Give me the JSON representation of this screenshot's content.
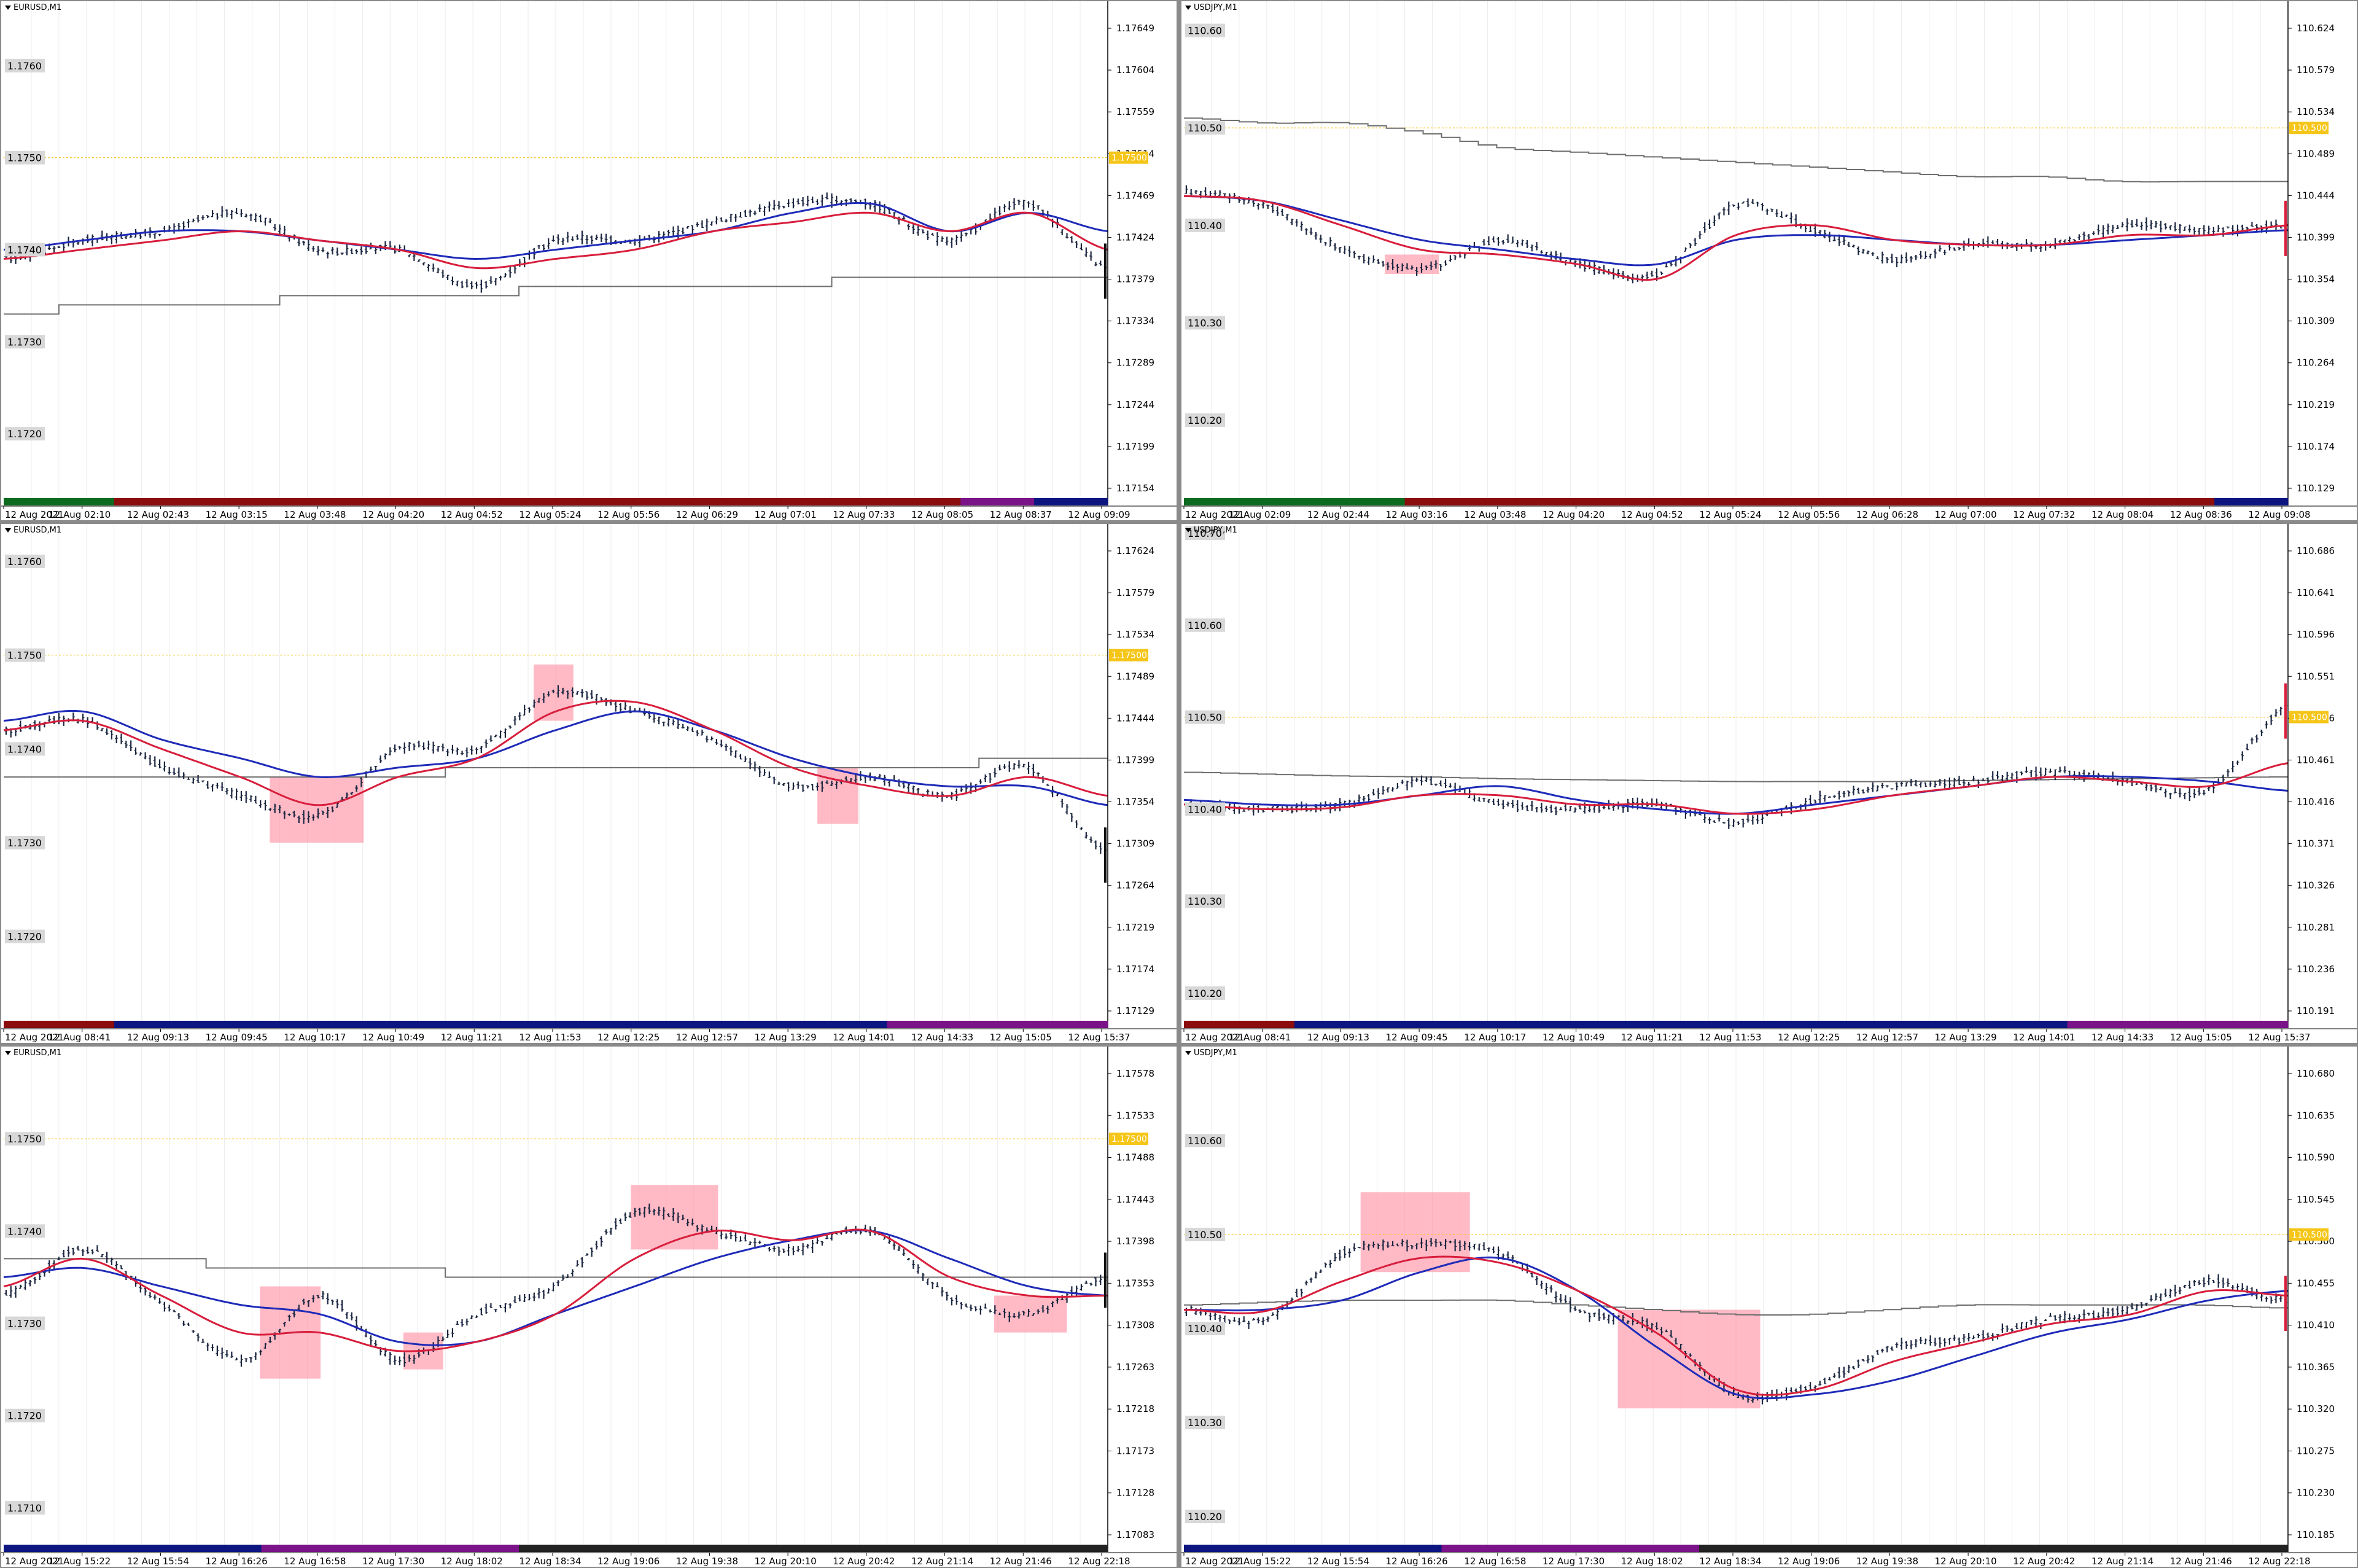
{
  "colors": {
    "candle": "#1c2740",
    "ma_fast": "#1f2bb8",
    "ma_slow": "#d81e3c",
    "slow_line": "#6e6e6e",
    "highlight": "#ff8fa3",
    "level_line": "#f5c518",
    "label_box": "#d8d8d8",
    "grid_v": "#ececec",
    "session_green": "#0b6b1e",
    "session_red": "#8b0d0d",
    "session_navy": "#0d1680",
    "session_purple": "#7a1288",
    "session_black": "#222222"
  },
  "panes": [
    {
      "title": "EURUSD,M1",
      "left_labels": [
        "1.1760",
        "1.1750",
        "1.1740",
        "1.1730",
        "1.1720"
      ],
      "right_labels": [
        "1.17649",
        "1.17604",
        "1.17559",
        "1.17514",
        "1.17469",
        "1.17424",
        "1.17379",
        "1.17334",
        "1.17289",
        "1.17244",
        "1.17199",
        "1.17154"
      ],
      "level_label": "1.17500",
      "time_labels": [
        "12 Aug 2021",
        "12 Aug 02:10",
        "12 Aug 02:43",
        "12 Aug 03:15",
        "12 Aug 03:48",
        "12 Aug 04:20",
        "12 Aug 04:52",
        "12 Aug 05:24",
        "12 Aug 05:56",
        "12 Aug 06:29",
        "12 Aug 07:01",
        "12 Aug 07:33",
        "12 Aug 08:05",
        "12 Aug 08:37",
        "12 Aug 09:09"
      ]
    },
    {
      "title": "USDJPY,M1",
      "left_labels": [
        "110.60",
        "110.50",
        "110.40",
        "110.30",
        "110.20"
      ],
      "right_labels": [
        "110.624",
        "110.579",
        "110.534",
        "110.489",
        "110.444",
        "110.399",
        "110.354",
        "110.309",
        "110.264",
        "110.219",
        "110.174",
        "110.129"
      ],
      "level_label": "110.500",
      "time_labels": [
        "12 Aug 2021",
        "12 Aug 02:09",
        "12 Aug 02:44",
        "12 Aug 03:16",
        "12 Aug 03:48",
        "12 Aug 04:20",
        "12 Aug 04:52",
        "12 Aug 05:24",
        "12 Aug 05:56",
        "12 Aug 06:28",
        "12 Aug 07:00",
        "12 Aug 07:32",
        "12 Aug 08:04",
        "12 Aug 08:36",
        "12 Aug 09:08"
      ]
    },
    {
      "title": "EURUSD,M1",
      "left_labels": [
        "1.1760",
        "1.1750",
        "1.1740",
        "1.1730",
        "1.1720"
      ],
      "right_labels": [
        "1.17624",
        "1.17579",
        "1.17534",
        "1.17489",
        "1.17444",
        "1.17399",
        "1.17354",
        "1.17309",
        "1.17264",
        "1.17219",
        "1.17174",
        "1.17129"
      ],
      "level_label": "1.17500",
      "time_labels": [
        "12 Aug 2021",
        "12 Aug 08:41",
        "12 Aug 09:13",
        "12 Aug 09:45",
        "12 Aug 10:17",
        "12 Aug 10:49",
        "12 Aug 11:21",
        "12 Aug 11:53",
        "12 Aug 12:25",
        "12 Aug 12:57",
        "12 Aug 13:29",
        "12 Aug 14:01",
        "12 Aug 14:33",
        "12 Aug 15:05",
        "12 Aug 15:37"
      ]
    },
    {
      "title": "USDJPY,M1",
      "left_labels": [
        "110.70",
        "110.60",
        "110.50",
        "110.40",
        "110.30",
        "110.20"
      ],
      "right_labels": [
        "110.686",
        "110.641",
        "110.596",
        "110.551",
        "110.506",
        "110.461",
        "110.416",
        "110.371",
        "110.326",
        "110.281",
        "110.236",
        "110.191"
      ],
      "level_label": "110.500",
      "time_labels": [
        "12 Aug 2021",
        "12 Aug 08:41",
        "12 Aug 09:13",
        "12 Aug 09:45",
        "12 Aug 10:17",
        "12 Aug 10:49",
        "12 Aug 11:21",
        "12 Aug 11:53",
        "12 Aug 12:25",
        "12 Aug 12:57",
        "12 Aug 13:29",
        "12 Aug 14:01",
        "12 Aug 14:33",
        "12 Aug 15:05",
        "12 Aug 15:37"
      ]
    },
    {
      "title": "EURUSD,M1",
      "left_labels": [
        "1.1750",
        "1.1740",
        "1.1730",
        "1.1720",
        "1.1710"
      ],
      "right_labels": [
        "1.17578",
        "1.17533",
        "1.17488",
        "1.17443",
        "1.17398",
        "1.17353",
        "1.17308",
        "1.17263",
        "1.17218",
        "1.17173",
        "1.17128",
        "1.17083"
      ],
      "level_label": "1.17500",
      "time_labels": [
        "12 Aug 2021",
        "12 Aug 15:22",
        "12 Aug 15:54",
        "12 Aug 16:26",
        "12 Aug 16:58",
        "12 Aug 17:30",
        "12 Aug 18:02",
        "12 Aug 18:34",
        "12 Aug 19:06",
        "12 Aug 19:38",
        "12 Aug 20:10",
        "12 Aug 20:42",
        "12 Aug 21:14",
        "12 Aug 21:46",
        "12 Aug 22:18"
      ]
    },
    {
      "title": "USDJPY,M1",
      "left_labels": [
        "110.70",
        "110.60",
        "110.50",
        "110.40",
        "110.30",
        "110.20"
      ],
      "right_labels": [
        "110.680",
        "110.635",
        "110.590",
        "110.545",
        "110.500",
        "110.455",
        "110.410",
        "110.365",
        "110.320",
        "110.275",
        "110.230",
        "110.185"
      ],
      "level_label": "110.500",
      "time_labels": [
        "12 Aug 2021",
        "12 Aug 15:22",
        "12 Aug 15:54",
        "12 Aug 16:26",
        "12 Aug 16:58",
        "12 Aug 17:30",
        "12 Aug 18:02",
        "12 Aug 18:34",
        "12 Aug 19:06",
        "12 Aug 19:38",
        "12 Aug 20:10",
        "12 Aug 20:42",
        "12 Aug 21:14",
        "12 Aug 21:46",
        "12 Aug 22:18"
      ]
    }
  ],
  "chart_data": [
    {
      "type": "line",
      "symbol": "EURUSD",
      "timeframe": "M1",
      "ylim": [
        1.1713,
        1.1767
      ],
      "level": 1.175,
      "x": [
        "12 Aug 2021",
        "12 Aug 02:10",
        "12 Aug 02:43",
        "12 Aug 03:15",
        "12 Aug 03:48",
        "12 Aug 04:20",
        "12 Aug 04:52",
        "12 Aug 05:24",
        "12 Aug 05:56",
        "12 Aug 06:29",
        "12 Aug 07:01",
        "12 Aug 07:33",
        "12 Aug 08:05",
        "12 Aug 08:37",
        "12 Aug 09:09"
      ],
      "series": [
        {
          "values": [
            1.1739,
            1.1741,
            1.1742,
            1.1744,
            1.174,
            1.174,
            1.1736,
            1.1741,
            1.1741,
            1.1743,
            1.1745,
            1.1745,
            1.1741,
            1.1745,
            1.1738
          ]
        },
        {
          "values": [
            1.174,
            1.1741,
            1.1742,
            1.1742,
            1.1741,
            1.174,
            1.1739,
            1.174,
            1.1741,
            1.1742,
            1.1744,
            1.1745,
            1.1742,
            1.1744,
            1.1742
          ]
        },
        {
          "values": [
            1.1739,
            1.174,
            1.1741,
            1.1742,
            1.1741,
            1.174,
            1.1738,
            1.1739,
            1.174,
            1.1742,
            1.1743,
            1.1744,
            1.1742,
            1.1744,
            1.174
          ]
        },
        {
          "values": [
            1.1733,
            1.1734,
            1.1734,
            1.1734,
            1.1735,
            1.1735,
            1.1735,
            1.1736,
            1.1736,
            1.1736,
            1.1736,
            1.1737,
            1.1737,
            1.1737,
            1.1737
          ]
        }
      ]
    },
    {
      "type": "line",
      "symbol": "USDJPY",
      "timeframe": "M1",
      "ylim": [
        110.12,
        110.63
      ],
      "level": 110.5,
      "x": [
        "12 Aug 2021",
        "12 Aug 02:09",
        "12 Aug 02:44",
        "12 Aug 03:16",
        "12 Aug 03:48",
        "12 Aug 04:20",
        "12 Aug 04:52",
        "12 Aug 05:24",
        "12 Aug 05:56",
        "12 Aug 06:28",
        "12 Aug 07:00",
        "12 Aug 07:32",
        "12 Aug 08:04",
        "12 Aug 08:36",
        "12 Aug 09:08"
      ],
      "series": [
        {
          "values": [
            110.435,
            110.42,
            110.375,
            110.355,
            110.385,
            110.36,
            110.35,
            110.42,
            110.395,
            110.365,
            110.38,
            110.38,
            110.4,
            110.395,
            110.4
          ]
        },
        {
          "values": [
            110.43,
            110.425,
            110.405,
            110.385,
            110.375,
            110.365,
            110.36,
            110.385,
            110.39,
            110.385,
            110.38,
            110.38,
            110.385,
            110.39,
            110.395
          ]
        },
        {
          "values": [
            110.43,
            110.425,
            110.4,
            110.375,
            110.37,
            110.36,
            110.345,
            110.39,
            110.4,
            110.385,
            110.38,
            110.38,
            110.39,
            110.39,
            110.4
          ]
        },
        {
          "values": [
            110.51,
            110.505,
            110.505,
            110.495,
            110.48,
            110.475,
            110.47,
            110.465,
            110.46,
            110.455,
            110.45,
            110.45,
            110.445,
            110.445,
            110.445
          ]
        }
      ]
    },
    {
      "type": "line",
      "symbol": "EURUSD",
      "timeframe": "M1",
      "ylim": [
        1.1711,
        1.1764
      ],
      "level": 1.175,
      "x": [
        "12 Aug 2021",
        "12 Aug 08:41",
        "12 Aug 09:13",
        "12 Aug 09:45",
        "12 Aug 10:17",
        "12 Aug 10:49",
        "12 Aug 11:21",
        "12 Aug 11:53",
        "12 Aug 12:25",
        "12 Aug 12:57",
        "12 Aug 13:29",
        "12 Aug 14:01",
        "12 Aug 14:33",
        "12 Aug 15:05",
        "12 Aug 15:37"
      ],
      "series": [
        {
          "values": [
            1.1742,
            1.1743,
            1.1738,
            1.1735,
            1.1733,
            1.174,
            1.174,
            1.1746,
            1.1744,
            1.1741,
            1.1736,
            1.1737,
            1.1735,
            1.1738,
            1.1729
          ]
        },
        {
          "values": [
            1.1743,
            1.1744,
            1.1741,
            1.1739,
            1.1737,
            1.1738,
            1.1739,
            1.1742,
            1.1744,
            1.1742,
            1.1739,
            1.1737,
            1.1736,
            1.1736,
            1.1734
          ]
        },
        {
          "values": [
            1.1742,
            1.1743,
            1.174,
            1.1737,
            1.1734,
            1.1737,
            1.1739,
            1.1744,
            1.1745,
            1.1742,
            1.1738,
            1.1736,
            1.1735,
            1.1737,
            1.1735
          ]
        },
        {
          "values": [
            1.1737,
            1.1737,
            1.1737,
            1.1737,
            1.1737,
            1.1737,
            1.1738,
            1.1738,
            1.1738,
            1.1738,
            1.1738,
            1.1738,
            1.1738,
            1.1739,
            1.1739
          ]
        }
      ]
    },
    {
      "type": "line",
      "symbol": "USDJPY",
      "timeframe": "M1",
      "ylim": [
        110.17,
        110.71
      ],
      "level": 110.5,
      "x": [
        "12 Aug 2021",
        "12 Aug 08:41",
        "12 Aug 09:13",
        "12 Aug 09:45",
        "12 Aug 10:17",
        "12 Aug 10:49",
        "12 Aug 11:21",
        "12 Aug 11:53",
        "12 Aug 12:25",
        "12 Aug 12:57",
        "12 Aug 13:29",
        "12 Aug 14:01",
        "12 Aug 14:33",
        "12 Aug 15:05",
        "12 Aug 15:37"
      ],
      "series": [
        {
          "values": [
            110.405,
            110.4,
            110.405,
            110.43,
            110.405,
            110.4,
            110.405,
            110.385,
            110.41,
            110.425,
            110.43,
            110.44,
            110.43,
            110.42,
            110.51
          ]
        },
        {
          "values": [
            110.41,
            110.405,
            110.405,
            110.415,
            110.425,
            110.41,
            110.4,
            110.395,
            110.405,
            110.415,
            110.425,
            110.435,
            110.435,
            110.43,
            110.42
          ]
        },
        {
          "values": [
            110.405,
            110.4,
            110.402,
            110.415,
            110.415,
            110.405,
            110.405,
            110.395,
            110.4,
            110.415,
            110.425,
            110.435,
            110.43,
            110.425,
            110.45
          ]
        },
        {
          "values": [
            110.44,
            110.438,
            110.436,
            110.435,
            110.433,
            110.432,
            110.431,
            110.43,
            110.43,
            110.43,
            110.431,
            110.432,
            110.433,
            110.434,
            110.435
          ]
        }
      ]
    },
    {
      "type": "line",
      "symbol": "EURUSD",
      "timeframe": "M1",
      "ylim": [
        1.1706,
        1.176
      ],
      "level": 1.175,
      "x": [
        "12 Aug 2021",
        "12 Aug 15:22",
        "12 Aug 15:54",
        "12 Aug 16:26",
        "12 Aug 16:58",
        "12 Aug 17:30",
        "12 Aug 18:02",
        "12 Aug 18:34",
        "12 Aug 19:06",
        "12 Aug 19:38",
        "12 Aug 20:10",
        "12 Aug 20:42",
        "12 Aug 21:14",
        "12 Aug 21:46",
        "12 Aug 22:18"
      ],
      "series": [
        {
          "values": [
            1.1733,
            1.1738,
            1.1732,
            1.1726,
            1.1733,
            1.1726,
            1.1731,
            1.1734,
            1.1742,
            1.174,
            1.1738,
            1.174,
            1.1733,
            1.1731,
            1.1735
          ]
        },
        {
          "values": [
            1.1735,
            1.1736,
            1.1734,
            1.1732,
            1.1731,
            1.1728,
            1.1728,
            1.1731,
            1.1734,
            1.1737,
            1.1739,
            1.174,
            1.1737,
            1.1734,
            1.1733
          ]
        },
        {
          "values": [
            1.1734,
            1.1737,
            1.1733,
            1.1729,
            1.1729,
            1.1727,
            1.1728,
            1.1731,
            1.1737,
            1.174,
            1.1739,
            1.174,
            1.1735,
            1.1733,
            1.1733
          ]
        },
        {
          "values": [
            1.1737,
            1.1737,
            1.1737,
            1.1736,
            1.1736,
            1.1736,
            1.1735,
            1.1735,
            1.1735,
            1.1735,
            1.1735,
            1.1735,
            1.1735,
            1.1735,
            1.1735
          ]
        }
      ]
    },
    {
      "type": "line",
      "symbol": "USDJPY",
      "timeframe": "M1",
      "ylim": [
        110.17,
        110.7
      ],
      "level": 110.5,
      "x": [
        "12 Aug 2021",
        "12 Aug 15:22",
        "12 Aug 15:54",
        "12 Aug 16:26",
        "12 Aug 16:58",
        "12 Aug 17:30",
        "12 Aug 18:02",
        "12 Aug 18:34",
        "12 Aug 19:06",
        "12 Aug 19:38",
        "12 Aug 20:10",
        "12 Aug 20:42",
        "12 Aug 21:14",
        "12 Aug 21:46",
        "12 Aug 22:18"
      ],
      "series": [
        {
          "values": [
            110.42,
            110.41,
            110.48,
            110.49,
            110.48,
            110.42,
            110.4,
            110.33,
            110.34,
            110.38,
            110.39,
            110.41,
            110.42,
            110.45,
            110.43
          ]
        },
        {
          "values": [
            110.42,
            110.42,
            110.43,
            110.46,
            110.475,
            110.44,
            110.38,
            110.33,
            110.33,
            110.345,
            110.37,
            110.395,
            110.41,
            110.43,
            110.44
          ]
        },
        {
          "values": [
            110.42,
            110.418,
            110.45,
            110.475,
            110.47,
            110.44,
            110.395,
            110.335,
            110.335,
            110.365,
            110.385,
            110.405,
            110.415,
            110.44,
            110.435
          ]
        },
        {
          "values": [
            110.425,
            110.428,
            110.43,
            110.43,
            110.43,
            110.425,
            110.42,
            110.415,
            110.415,
            110.42,
            110.425,
            110.425,
            110.425,
            110.425,
            110.422
          ]
        }
      ]
    }
  ]
}
